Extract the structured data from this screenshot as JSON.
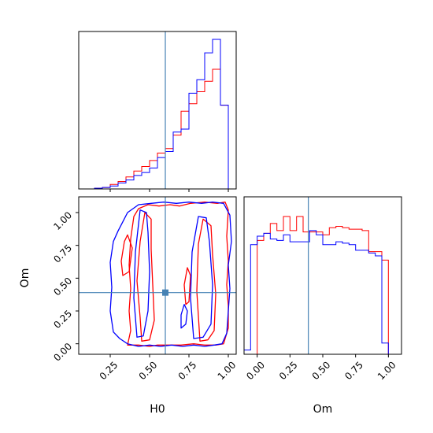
{
  "chart_data": {
    "type": "corner",
    "colors": {
      "red": "#ff0000",
      "blue": "#0000ff",
      "truth": "#4682b4",
      "axes": "#000000"
    },
    "truth": {
      "H0": 0.6,
      "Om": 0.39
    },
    "panels": [
      {
        "id": "hist-H0",
        "type": "histogram",
        "xlim": [
          0.05,
          1.05
        ],
        "xticks": [
          0.25,
          0.5,
          0.75,
          1.0
        ],
        "show_tick_labels": false,
        "series": [
          {
            "color": "red",
            "edges": [
              0.1,
              0.15,
              0.2,
              0.25,
              0.3,
              0.35,
              0.4,
              0.45,
              0.5,
              0.55,
              0.6,
              0.65,
              0.7,
              0.75,
              0.8,
              0.85,
              0.9,
              0.95,
              1.0,
              1.05
            ],
            "values": [
              0,
              0.005,
              0.01,
              0.03,
              0.05,
              0.08,
              0.12,
              0.15,
              0.19,
              0.24,
              0.27,
              0.36,
              0.52,
              0.57,
              0.65,
              0.72,
              0.8,
              0.56,
              0
            ],
            "ylim": [
              0,
              1.0
            ]
          },
          {
            "color": "blue",
            "edges": [
              0.1,
              0.15,
              0.2,
              0.25,
              0.3,
              0.35,
              0.4,
              0.45,
              0.5,
              0.55,
              0.6,
              0.65,
              0.7,
              0.75,
              0.8,
              0.85,
              0.9,
              0.95,
              1.0,
              1.05
            ],
            "values": [
              0,
              0.005,
              0.01,
              0.02,
              0.04,
              0.06,
              0.09,
              0.11,
              0.14,
              0.21,
              0.25,
              0.38,
              0.4,
              0.64,
              0.73,
              0.91,
              1.0,
              0.56,
              0
            ],
            "ylim": [
              0,
              1.0
            ]
          }
        ]
      },
      {
        "id": "scatter-H0-Om",
        "type": "contour",
        "xlim": [
          0.05,
          1.05
        ],
        "ylim": [
          -0.08,
          1.12
        ],
        "xticks": [
          0.25,
          0.5,
          0.75,
          1.0
        ],
        "yticks": [
          0.0,
          0.25,
          0.5,
          0.75,
          1.0
        ],
        "xlabel": "H0",
        "ylabel": "Om",
        "tick_labels": [
          "0.25",
          "0.50",
          "0.75",
          "1.00"
        ],
        "ytick_labels": [
          "0.00",
          "0.25",
          "0.50",
          "0.75",
          "1.00"
        ],
        "contours": [
          {
            "color": "red",
            "closed": true,
            "x": [
              0.36,
              0.43,
              0.5,
              0.55,
              0.62,
              0.7,
              0.78,
              0.85,
              0.92,
              0.97,
              1.0,
              1.0,
              0.99,
              1.0,
              0.99,
              1.0,
              0.98,
              0.93,
              0.85,
              0.76,
              0.69,
              0.63,
              0.56,
              0.49,
              0.43,
              0.4,
              0.38,
              0.37,
              0.38,
              0.37,
              0.38,
              0.36
            ],
            "y": [
              -0.01,
              -0.01,
              -0.02,
              -0.01,
              -0.01,
              -0.01,
              0.0,
              -0.01,
              -0.01,
              0.0,
              0.12,
              0.29,
              0.45,
              0.63,
              0.82,
              1.02,
              1.08,
              1.07,
              1.08,
              1.07,
              1.05,
              1.06,
              1.05,
              1.06,
              1.03,
              0.97,
              0.8,
              0.6,
              0.42,
              0.25,
              0.1,
              -0.01
            ]
          },
          {
            "color": "red",
            "closed": true,
            "x": [
              0.45,
              0.5,
              0.53,
              0.52,
              0.51,
              0.51,
              0.47,
              0.44,
              0.42,
              0.44,
              0.45
            ],
            "y": [
              0.02,
              0.03,
              0.18,
              0.45,
              0.72,
              0.95,
              1.0,
              0.78,
              0.48,
              0.2,
              0.02
            ]
          },
          {
            "color": "red",
            "closed": true,
            "x": [
              0.82,
              0.87,
              0.91,
              0.92,
              0.9,
              0.89,
              0.84,
              0.81,
              0.8,
              0.82
            ],
            "y": [
              0.02,
              0.03,
              0.1,
              0.38,
              0.68,
              0.9,
              0.95,
              0.76,
              0.4,
              0.02
            ]
          },
          {
            "color": "red",
            "closed": true,
            "x": [
              0.33,
              0.37,
              0.39,
              0.36,
              0.34,
              0.32,
              0.33
            ],
            "y": [
              0.52,
              0.55,
              0.73,
              0.83,
              0.78,
              0.63,
              0.52
            ]
          },
          {
            "color": "red",
            "closed": true,
            "x": [
              0.73,
              0.75,
              0.76,
              0.74,
              0.72,
              0.73
            ],
            "y": [
              0.3,
              0.32,
              0.52,
              0.58,
              0.45,
              0.3
            ]
          },
          {
            "color": "blue",
            "closed": true,
            "x": [
              0.27,
              0.31,
              0.36,
              0.43,
              0.5,
              0.57,
              0.64,
              0.71,
              0.78,
              0.85,
              0.91,
              0.96,
              0.99,
              1.0,
              1.01,
              1.0,
              1.02,
              1.01,
              0.97,
              0.9,
              0.83,
              0.75,
              0.67,
              0.59,
              0.51,
              0.43,
              0.36,
              0.33,
              0.3,
              0.27,
              0.25,
              0.26,
              0.25,
              0.27
            ],
            "y": [
              0.09,
              0.04,
              0.0,
              -0.02,
              -0.01,
              -0.02,
              -0.01,
              -0.02,
              -0.01,
              -0.02,
              -0.01,
              0.0,
              0.08,
              0.25,
              0.42,
              0.6,
              0.78,
              0.98,
              1.07,
              1.08,
              1.07,
              1.08,
              1.07,
              1.08,
              1.07,
              1.06,
              1.0,
              0.93,
              0.86,
              0.78,
              0.62,
              0.43,
              0.25,
              0.09
            ]
          },
          {
            "color": "blue",
            "closed": true,
            "x": [
              0.42,
              0.46,
              0.49,
              0.5,
              0.49,
              0.48,
              0.44,
              0.41,
              0.4,
              0.42
            ],
            "y": [
              0.05,
              0.06,
              0.25,
              0.55,
              0.85,
              1.0,
              1.02,
              0.7,
              0.35,
              0.05
            ]
          },
          {
            "color": "blue",
            "closed": true,
            "x": [
              0.78,
              0.84,
              0.89,
              0.9,
              0.88,
              0.86,
              0.81,
              0.77,
              0.76,
              0.78
            ],
            "y": [
              0.04,
              0.05,
              0.15,
              0.45,
              0.78,
              0.96,
              0.97,
              0.7,
              0.35,
              0.04
            ]
          },
          {
            "color": "blue",
            "closed": true,
            "x": [
              0.7,
              0.73,
              0.74,
              0.72,
              0.7,
              0.7
            ],
            "y": [
              0.12,
              0.15,
              0.25,
              0.3,
              0.22,
              0.12
            ]
          }
        ]
      },
      {
        "id": "hist-Om",
        "type": "histogram",
        "xlim": [
          -0.1,
          1.1
        ],
        "xticks": [
          0.0,
          0.25,
          0.5,
          0.75,
          1.0
        ],
        "xlabel": "Om",
        "tick_labels": [
          "0.00",
          "0.25",
          "0.50",
          "0.75",
          "1.00"
        ],
        "series": [
          {
            "color": "red",
            "edges": [
              0.0,
              0.05,
              0.1,
              0.15,
              0.2,
              0.25,
              0.3,
              0.35,
              0.4,
              0.45,
              0.5,
              0.55,
              0.6,
              0.65,
              0.7,
              0.75,
              0.8,
              0.85,
              0.9,
              0.95,
              1.0
            ],
            "values": [
              0.81,
              0.86,
              0.93,
              0.88,
              0.98,
              0.88,
              0.98,
              0.87,
              0.87,
              0.87,
              0.85,
              0.9,
              0.91,
              0.9,
              0.89,
              0.89,
              0.88,
              0.73,
              0.73,
              0.67
            ],
            "ylim": [
              0,
              1.12
            ]
          },
          {
            "color": "blue",
            "edges": [
              -0.1,
              -0.05,
              0.0,
              0.05,
              0.1,
              0.15,
              0.2,
              0.25,
              0.3,
              0.35,
              0.4,
              0.45,
              0.5,
              0.55,
              0.6,
              0.65,
              0.7,
              0.75,
              0.8,
              0.85,
              0.9,
              0.95,
              1.0,
              1.05
            ],
            "values": [
              0.03,
              0.78,
              0.84,
              0.86,
              0.82,
              0.81,
              0.85,
              0.8,
              0.8,
              0.8,
              0.88,
              0.85,
              0.78,
              0.78,
              0.8,
              0.79,
              0.78,
              0.74,
              0.74,
              0.72,
              0.7,
              0.08,
              0.0
            ],
            "ylim": [
              0,
              1.12
            ]
          }
        ]
      }
    ]
  }
}
